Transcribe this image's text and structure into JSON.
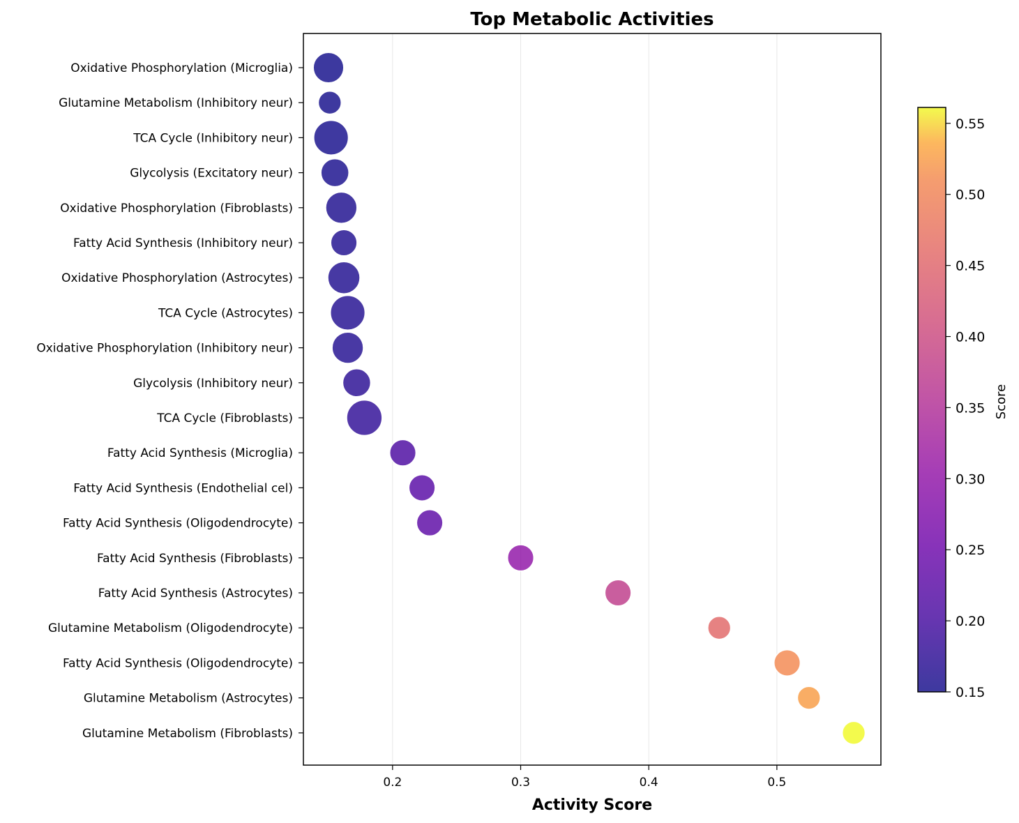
{
  "chart_data": {
    "type": "scatter",
    "title": "Top Metabolic Activities",
    "xlabel": "Activity Score",
    "ylabel": "",
    "xlim": [
      0.13,
      0.58
    ],
    "xticks": [
      0.2,
      0.3,
      0.4,
      0.5
    ],
    "xtick_labels": [
      "0.2",
      "0.3",
      "0.4",
      "0.5"
    ],
    "grid": "vertical",
    "colormap": "plasma",
    "colorbar": {
      "label": "Score",
      "range": [
        0.15,
        0.56
      ],
      "ticks": [
        0.15,
        0.2,
        0.25,
        0.3,
        0.35,
        0.4,
        0.45,
        0.5,
        0.55
      ],
      "tick_labels": [
        "0.15",
        "0.20",
        "0.25",
        "0.30",
        "0.35",
        "0.40",
        "0.45",
        "0.50",
        "0.55"
      ]
    },
    "points": [
      {
        "label": "Oxidative Phosphorylation (Microglia)",
        "x": 0.15,
        "size": 0.9
      },
      {
        "label": "Glutamine Metabolism (Inhibitory neur)",
        "x": 0.151,
        "size": 0.45
      },
      {
        "label": "TCA Cycle (Inhibitory neur)",
        "x": 0.152,
        "size": 1.15
      },
      {
        "label": "Glycolysis (Excitatory neur)",
        "x": 0.155,
        "size": 0.75
      },
      {
        "label": "Oxidative Phosphorylation (Fibroblasts)",
        "x": 0.16,
        "size": 0.95
      },
      {
        "label": "Fatty Acid Synthesis (Inhibitory neur)",
        "x": 0.162,
        "size": 0.65
      },
      {
        "label": "Oxidative Phosphorylation (Astrocytes)",
        "x": 0.162,
        "size": 1.0
      },
      {
        "label": "TCA Cycle (Astrocytes)",
        "x": 0.165,
        "size": 1.15
      },
      {
        "label": "Oxidative Phosphorylation (Inhibitory neur)",
        "x": 0.165,
        "size": 0.95
      },
      {
        "label": "Glycolysis (Inhibitory neur)",
        "x": 0.172,
        "size": 0.75
      },
      {
        "label": "TCA Cycle (Fibroblasts)",
        "x": 0.178,
        "size": 1.2
      },
      {
        "label": "Fatty Acid Synthesis (Microglia)",
        "x": 0.208,
        "size": 0.65
      },
      {
        "label": "Fatty Acid Synthesis (Endothelial cel)",
        "x": 0.223,
        "size": 0.65
      },
      {
        "label": "Fatty Acid Synthesis (Oligodendrocyte)",
        "x": 0.229,
        "size": 0.65
      },
      {
        "label": "Fatty Acid Synthesis (Fibroblasts)",
        "x": 0.3,
        "size": 0.65
      },
      {
        "label": "Fatty Acid Synthesis (Astrocytes)",
        "x": 0.376,
        "size": 0.65
      },
      {
        "label": "Glutamine Metabolism (Oligodendrocyte)",
        "x": 0.455,
        "size": 0.45
      },
      {
        "label": "Fatty Acid Synthesis (Oligodendrocyte)",
        "x": 0.508,
        "size": 0.65
      },
      {
        "label": "Glutamine Metabolism (Astrocytes)",
        "x": 0.525,
        "size": 0.45
      },
      {
        "label": "Glutamine Metabolism (Fibroblasts)",
        "x": 0.56,
        "size": 0.45
      }
    ]
  }
}
